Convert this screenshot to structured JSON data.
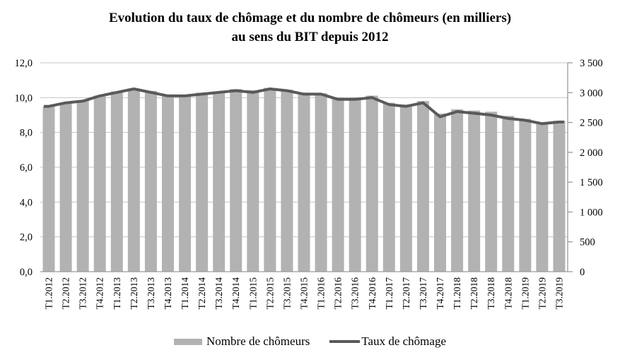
{
  "title": {
    "line1": "Evolution du taux de chômage et du nombre de chômeurs (en milliers)",
    "line2": "au sens du BIT depuis 2012"
  },
  "chart_data": {
    "type": "bar",
    "subtype": "combo-bar-line-dual-axis",
    "title": "Evolution du taux de chômage et du nombre de chômeurs (en milliers) au sens du BIT depuis 2012",
    "categories": [
      "T1.2012",
      "T2.2012",
      "T3.2012",
      "T4.2012",
      "T1.2013",
      "T2.2013",
      "T3.2013",
      "T4.2013",
      "T1.2014",
      "T2.2014",
      "T3.2014",
      "T4.2014",
      "T1.2015",
      "T2.2015",
      "T3.2015",
      "T4.2015",
      "T1.2016",
      "T2.2016",
      "T3.2016",
      "T4.2016",
      "T1.2017",
      "T2.2017",
      "T3.2017",
      "T4.2017",
      "T1.2018",
      "T2.2018",
      "T3.2018",
      "T4.2018",
      "T1.2019",
      "T2.2019",
      "T3.2019"
    ],
    "series": [
      {
        "name": "Nombre de chômeurs",
        "kind": "bar",
        "axis": "right",
        "color": "#b2b2b2",
        "values": [
          2770,
          2820,
          2870,
          2950,
          3020,
          3070,
          3030,
          2970,
          2960,
          3000,
          3020,
          3060,
          3040,
          3080,
          3050,
          3000,
          2990,
          2920,
          2920,
          2950,
          2830,
          2800,
          2860,
          2650,
          2720,
          2700,
          2680,
          2610,
          2560,
          2500,
          2530
        ]
      },
      {
        "name": "Taux de chômage",
        "kind": "line",
        "axis": "left",
        "color": "#595959",
        "values": [
          9.5,
          9.7,
          9.8,
          10.1,
          10.3,
          10.5,
          10.3,
          10.1,
          10.1,
          10.2,
          10.3,
          10.4,
          10.3,
          10.5,
          10.4,
          10.2,
          10.2,
          9.9,
          9.9,
          10.0,
          9.6,
          9.5,
          9.7,
          8.9,
          9.2,
          9.1,
          9.0,
          8.8,
          8.7,
          8.5,
          8.6
        ]
      }
    ],
    "left_axis": {
      "min": 0,
      "max": 12,
      "step": 2,
      "labels": [
        "0,0",
        "2,0",
        "4,0",
        "6,0",
        "8,0",
        "10,0",
        "12,0"
      ]
    },
    "right_axis": {
      "min": 0,
      "max": 3500,
      "step": 500,
      "labels": [
        "0",
        "500",
        "1 000",
        "1 500",
        "2 000",
        "2 500",
        "3 000",
        "3 500"
      ]
    },
    "grid": true,
    "legend_position": "bottom"
  },
  "colors": {
    "bar": "#b2b2b2",
    "line": "#595959",
    "grid": "#c4c4c4",
    "axis": "#9a9a9a",
    "text": "#000000",
    "background": "#ffffff"
  }
}
